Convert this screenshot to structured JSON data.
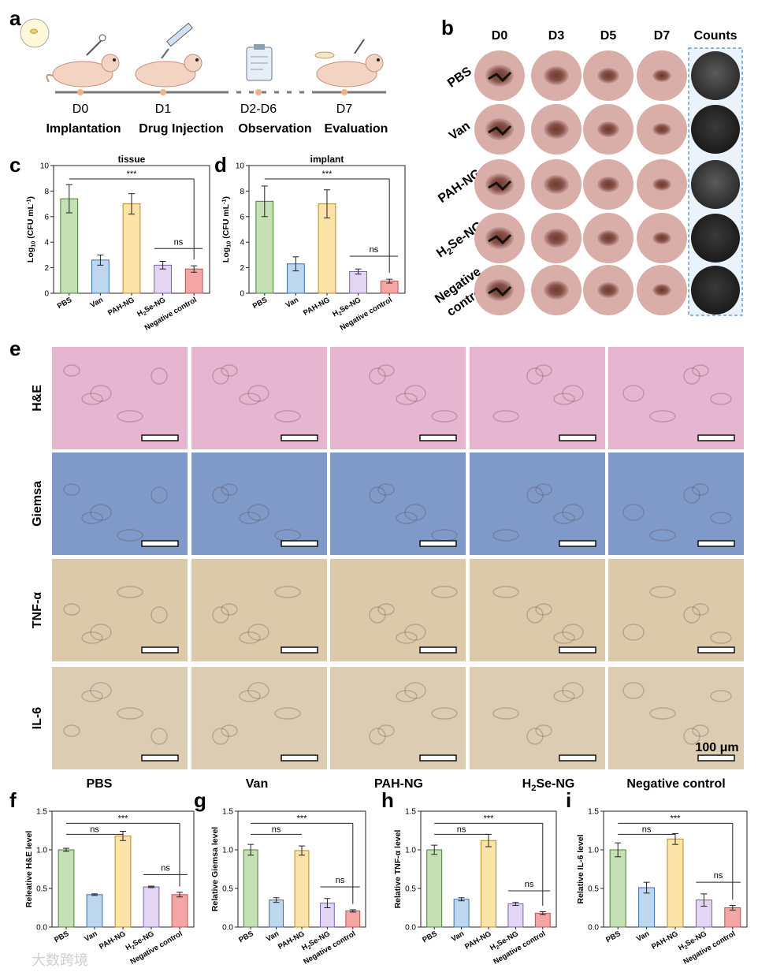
{
  "panel_letters": [
    "a",
    "b",
    "c",
    "d",
    "e",
    "f",
    "g",
    "h",
    "i"
  ],
  "panel_a": {
    "days": [
      "D0",
      "D1",
      "D2-D6",
      "D7"
    ],
    "steps": [
      "Implantation",
      "Drug Injection",
      "Observation",
      "Evaluation"
    ]
  },
  "panel_b": {
    "columns": [
      "D0",
      "D3",
      "D5",
      "D7",
      "Counts"
    ],
    "rows": [
      "PBS",
      "Van",
      "PAH-NG",
      "H2Se-NG",
      "Negative control"
    ]
  },
  "panel_e": {
    "stains": [
      "H&E",
      "Giemsa",
      "TNF-α",
      "IL-6"
    ],
    "groups": [
      "PBS",
      "Van",
      "PAH-NG",
      "H2Se-NG",
      "Negative control"
    ],
    "scale_bar": "100 μm",
    "stain_colors": [
      "#e6b5d0",
      "#7f9ac8",
      "#dcc9aa",
      "#dcccb2"
    ]
  },
  "bar_colors": [
    "#c5e0b4",
    "#bdd7ee",
    "#fce4a8",
    "#e2d6f2",
    "#f4a6a6"
  ],
  "bar_edge_colors": [
    "#4a7f3a",
    "#3b6ea8",
    "#b88a28",
    "#7b61a8",
    "#c0504d"
  ],
  "watermark": "大数跨境",
  "chart_data": [
    {
      "id": "c",
      "type": "bar",
      "title": "tissue",
      "ylabel": "Log10 (CFU mL-1)",
      "categories": [
        "PBS",
        "Van",
        "PAH-NG",
        "H2Se-NG",
        "Negative control"
      ],
      "values": [
        7.4,
        2.6,
        7.0,
        2.2,
        1.9
      ],
      "errors": [
        1.1,
        0.4,
        0.8,
        0.3,
        0.25
      ],
      "ylim": [
        0,
        10
      ],
      "yticks": [
        0,
        2,
        4,
        6,
        8,
        10
      ],
      "annotations": [
        {
          "from": 0,
          "to": 4,
          "text": "***"
        },
        {
          "from": 3,
          "to": 4,
          "text": "ns"
        }
      ]
    },
    {
      "id": "d",
      "type": "bar",
      "title": "implant",
      "ylabel": "Log10 (CFU mL-1)",
      "categories": [
        "PBS",
        "Van",
        "PAH-NG",
        "H2Se-NG",
        "Negative control"
      ],
      "values": [
        7.2,
        2.3,
        7.0,
        1.7,
        0.95
      ],
      "errors": [
        1.2,
        0.55,
        1.1,
        0.2,
        0.15
      ],
      "ylim": [
        0,
        10
      ],
      "yticks": [
        0,
        2,
        4,
        6,
        8,
        10
      ],
      "annotations": [
        {
          "from": 0,
          "to": 4,
          "text": "***"
        },
        {
          "from": 3,
          "to": 4,
          "text": "ns"
        }
      ]
    },
    {
      "id": "f",
      "type": "bar",
      "title": "",
      "ylabel": "Releative H&E level",
      "categories": [
        "PBS",
        "Van",
        "PAH-NG",
        "H2Se-NG",
        "Negative control"
      ],
      "values": [
        1.0,
        0.42,
        1.18,
        0.52,
        0.42
      ],
      "errors": [
        0.02,
        0.01,
        0.06,
        0.01,
        0.03
      ],
      "ylim": [
        0,
        1.5
      ],
      "yticks": [
        0.0,
        0.5,
        1.0,
        1.5
      ],
      "annotations": [
        {
          "from": 0,
          "to": 2,
          "text": "ns"
        },
        {
          "from": 0,
          "to": 4,
          "text": "***"
        },
        {
          "from": 3,
          "to": 4,
          "text": "ns"
        }
      ]
    },
    {
      "id": "g",
      "type": "bar",
      "title": "",
      "ylabel": "Relative Giemsa level",
      "categories": [
        "PBS",
        "Van",
        "PAH-NG",
        "H2Se-NG",
        "Negative control"
      ],
      "values": [
        1.0,
        0.35,
        0.99,
        0.31,
        0.21
      ],
      "errors": [
        0.07,
        0.03,
        0.06,
        0.06,
        0.015
      ],
      "ylim": [
        0,
        1.5
      ],
      "yticks": [
        0.0,
        0.5,
        1.0,
        1.5
      ],
      "annotations": [
        {
          "from": 0,
          "to": 2,
          "text": "ns"
        },
        {
          "from": 0,
          "to": 4,
          "text": "***"
        },
        {
          "from": 3,
          "to": 4,
          "text": "ns"
        }
      ]
    },
    {
      "id": "h",
      "type": "bar",
      "title": "",
      "ylabel": "Relative TNF-α level",
      "categories": [
        "PBS",
        "Van",
        "PAH-NG",
        "H2Se-NG",
        "Negative control"
      ],
      "values": [
        1.0,
        0.36,
        1.12,
        0.3,
        0.18
      ],
      "errors": [
        0.06,
        0.02,
        0.08,
        0.02,
        0.02
      ],
      "ylim": [
        0,
        1.5
      ],
      "yticks": [
        0.0,
        0.5,
        1.0,
        1.5
      ],
      "annotations": [
        {
          "from": 0,
          "to": 2,
          "text": "ns"
        },
        {
          "from": 0,
          "to": 4,
          "text": "***"
        },
        {
          "from": 3,
          "to": 4,
          "text": "ns"
        }
      ]
    },
    {
      "id": "i",
      "type": "bar",
      "title": "",
      "ylabel": "Relative IL-6 level",
      "categories": [
        "PBS",
        "Van",
        "PAH-NG",
        "H2Se-NG",
        "Negative control"
      ],
      "values": [
        1.0,
        0.51,
        1.14,
        0.35,
        0.25
      ],
      "errors": [
        0.09,
        0.07,
        0.07,
        0.08,
        0.03
      ],
      "ylim": [
        0,
        1.5
      ],
      "yticks": [
        0.0,
        0.5,
        1.0,
        1.5
      ],
      "annotations": [
        {
          "from": 0,
          "to": 2,
          "text": "ns"
        },
        {
          "from": 0,
          "to": 4,
          "text": "***"
        },
        {
          "from": 3,
          "to": 4,
          "text": "ns"
        }
      ]
    }
  ]
}
